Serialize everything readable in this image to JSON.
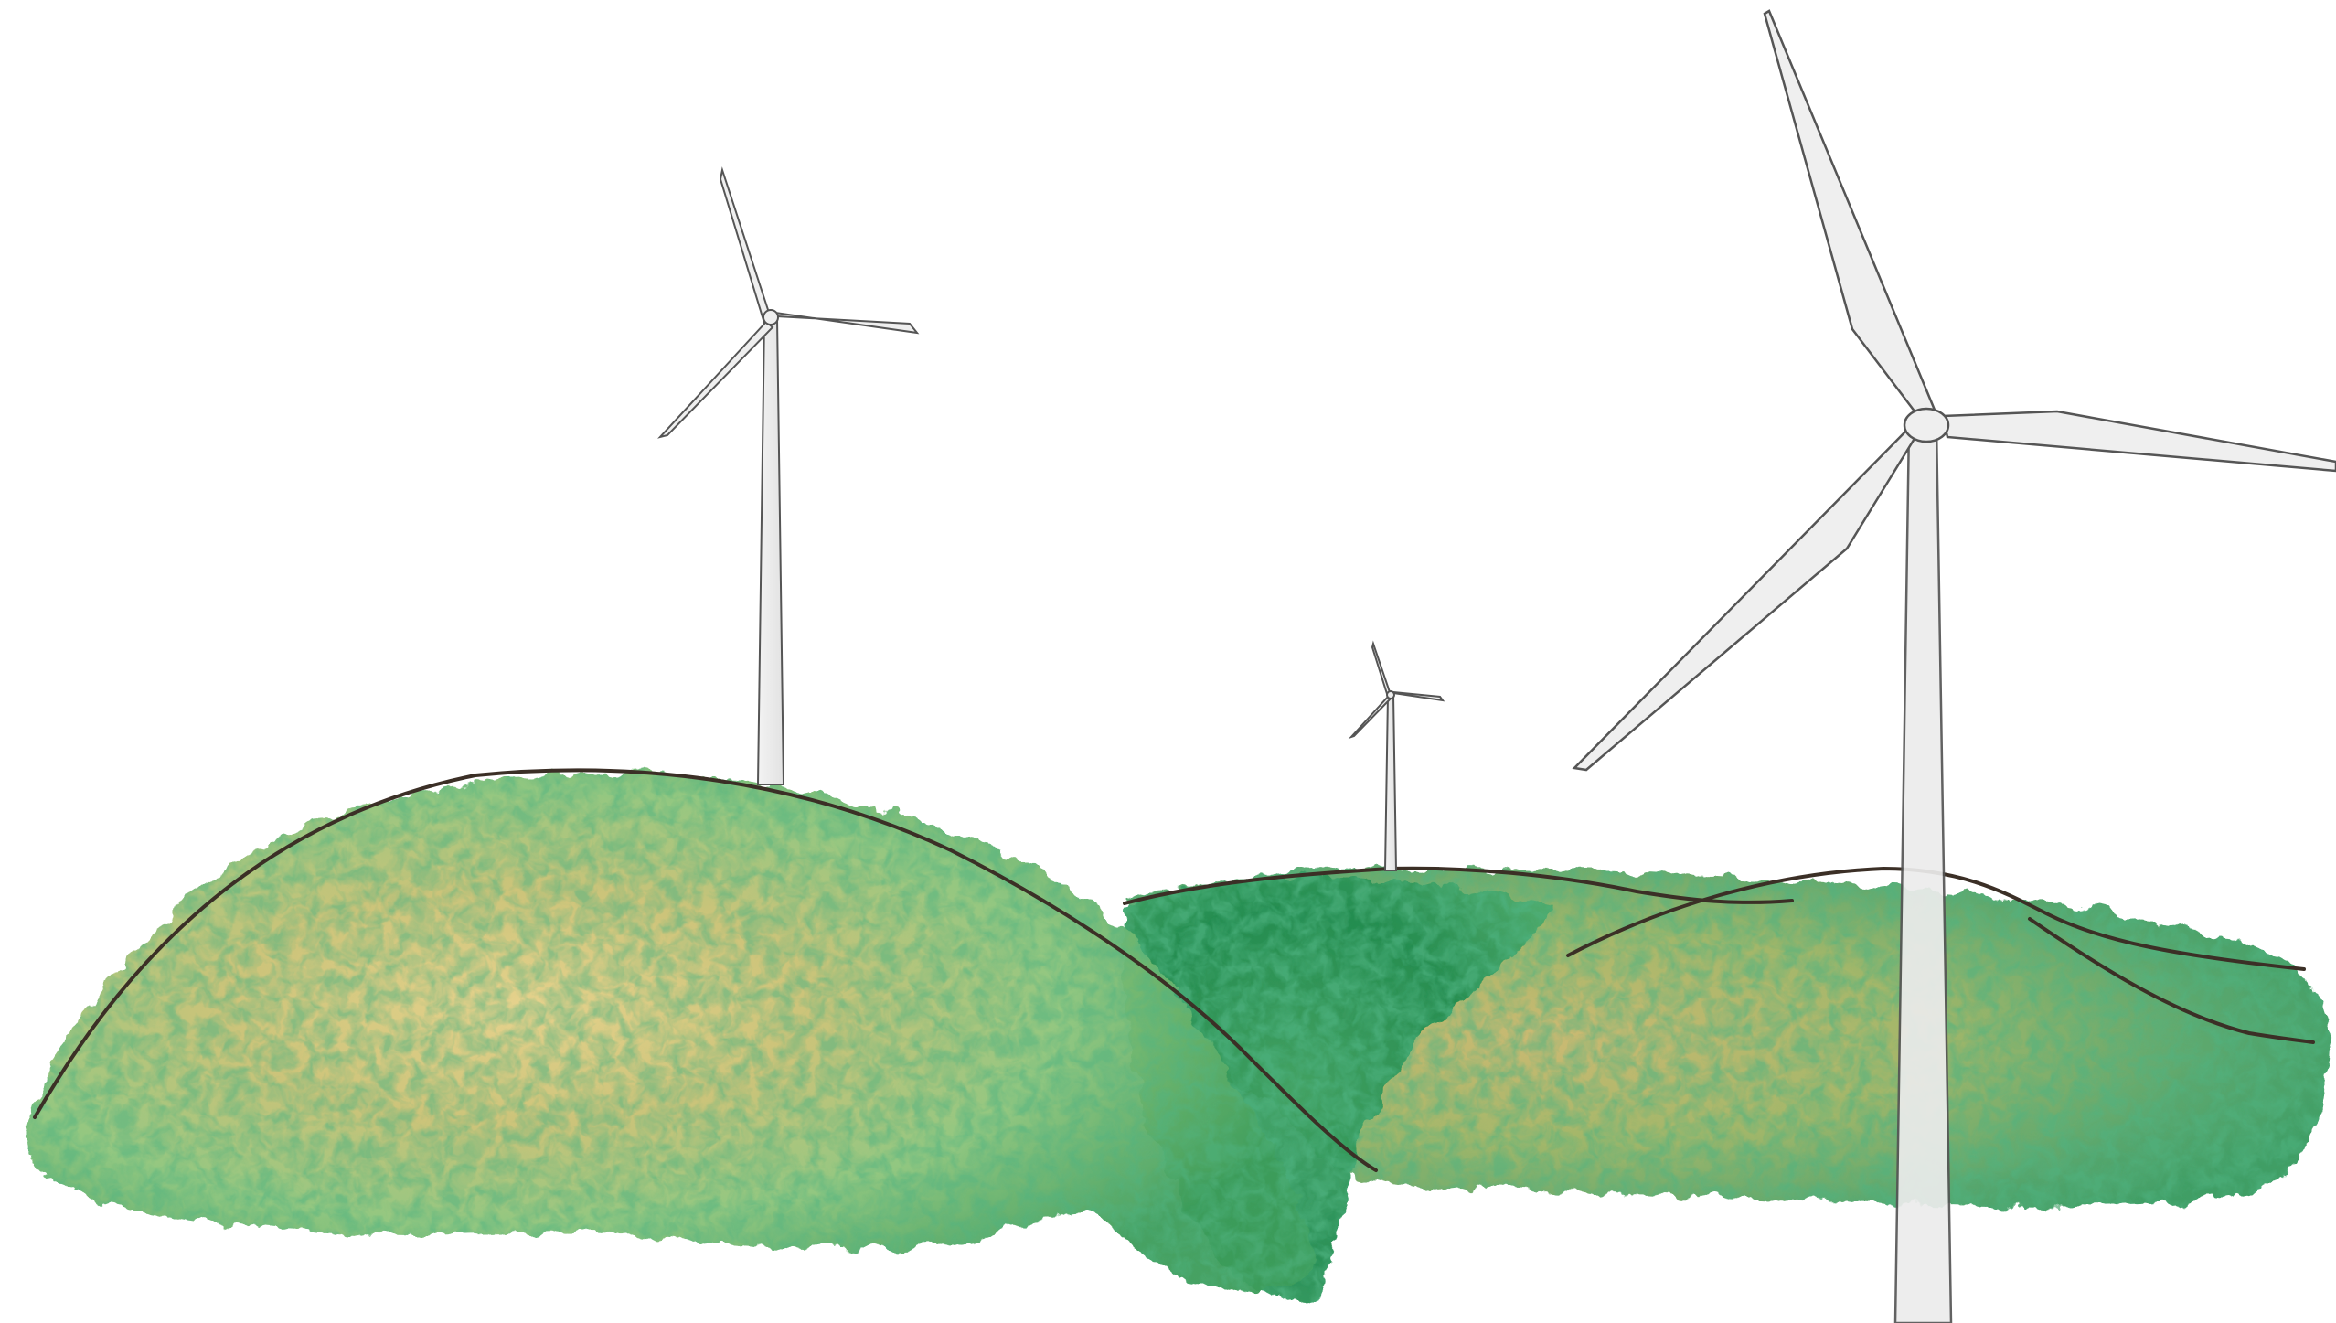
{
  "scene": {
    "background_color": "#ffffff",
    "palette": {
      "hill_dark_green": "#1f8a4c",
      "hill_green": "#3fa65a",
      "hill_light_green": "#8cc878",
      "hill_yellow": "#d8c477",
      "hill_olive": "#b7a655",
      "outline": "#3b2f26",
      "turbine_fill": "#efefef",
      "turbine_stroke": "#555555"
    },
    "turbines": [
      {
        "id": "small-left"
      },
      {
        "id": "tiny-center"
      },
      {
        "id": "large-right"
      }
    ]
  }
}
